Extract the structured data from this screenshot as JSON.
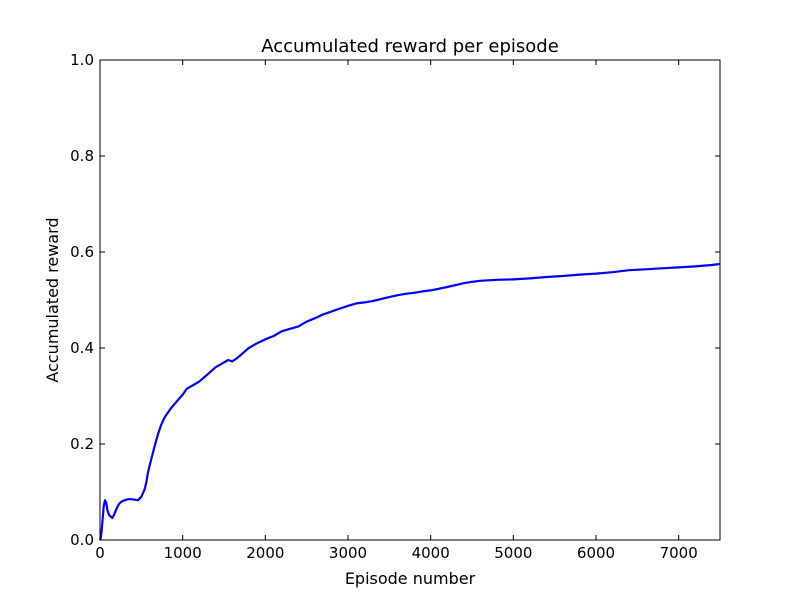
{
  "chart_data": {
    "type": "line",
    "title": "Accumulated reward per episode",
    "xlabel": "Episode number",
    "ylabel": "Accumulated reward",
    "xlim": [
      0,
      7500
    ],
    "ylim": [
      0.0,
      1.0
    ],
    "xticks": [
      "0",
      "1000",
      "2000",
      "3000",
      "4000",
      "5000",
      "6000",
      "7000"
    ],
    "yticks": [
      "0.0",
      "0.2",
      "0.4",
      "0.6",
      "0.8",
      "1.0"
    ],
    "grid": false,
    "legend": "none",
    "series": [
      {
        "color": "#0000ff",
        "x": [
          0,
          10,
          20,
          30,
          45,
          60,
          75,
          90,
          110,
          130,
          150,
          170,
          200,
          230,
          260,
          300,
          340,
          380,
          420,
          460,
          500,
          540,
          560,
          580,
          600,
          630,
          660,
          700,
          740,
          780,
          820,
          860,
          900,
          950,
          1000,
          1050,
          1100,
          1150,
          1200,
          1300,
          1400,
          1500,
          1550,
          1600,
          1650,
          1700,
          1800,
          1900,
          2000,
          2100,
          2200,
          2300,
          2400,
          2500,
          2600,
          2700,
          2800,
          2900,
          3000,
          3100,
          3200,
          3300,
          3400,
          3500,
          3600,
          3700,
          3800,
          3900,
          4000,
          4200,
          4400,
          4500,
          4600,
          4800,
          5000,
          5200,
          5400,
          5600,
          5800,
          6000,
          6200,
          6400,
          6600,
          6800,
          7000,
          7200,
          7400,
          7500
        ],
        "y": [
          0.0,
          0.005,
          0.02,
          0.04,
          0.07,
          0.083,
          0.078,
          0.062,
          0.052,
          0.049,
          0.046,
          0.053,
          0.065,
          0.075,
          0.08,
          0.083,
          0.085,
          0.085,
          0.084,
          0.083,
          0.09,
          0.105,
          0.12,
          0.14,
          0.155,
          0.175,
          0.195,
          0.22,
          0.24,
          0.255,
          0.265,
          0.275,
          0.283,
          0.293,
          0.303,
          0.315,
          0.32,
          0.325,
          0.33,
          0.345,
          0.36,
          0.37,
          0.375,
          0.372,
          0.378,
          0.385,
          0.4,
          0.41,
          0.418,
          0.425,
          0.435,
          0.44,
          0.445,
          0.455,
          0.462,
          0.47,
          0.476,
          0.482,
          0.488,
          0.493,
          0.495,
          0.498,
          0.502,
          0.506,
          0.51,
          0.513,
          0.515,
          0.518,
          0.52,
          0.527,
          0.535,
          0.538,
          0.54,
          0.542,
          0.543,
          0.545,
          0.548,
          0.55,
          0.553,
          0.555,
          0.558,
          0.562,
          0.564,
          0.566,
          0.568,
          0.57,
          0.573,
          0.575
        ]
      }
    ]
  }
}
